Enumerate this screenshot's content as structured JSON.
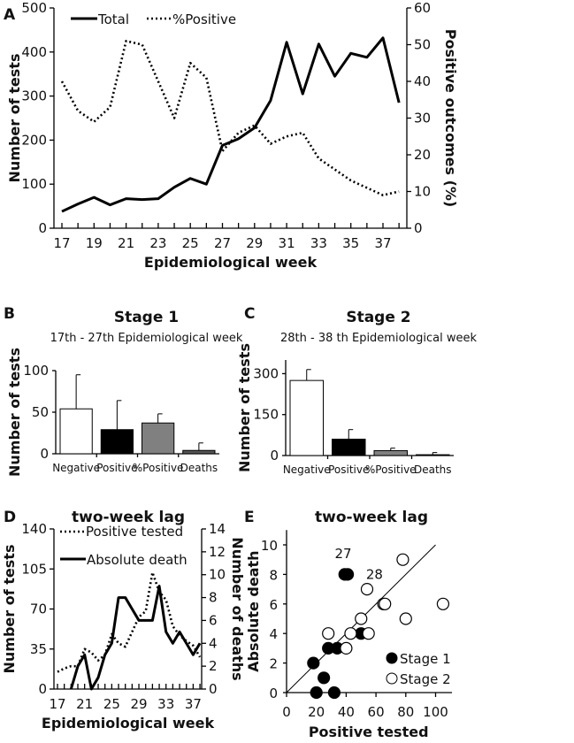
{
  "chart_data": [
    {
      "panel": "A",
      "type": "line",
      "xlabel": "Epidemiological week",
      "ylabel": "Number of tests",
      "y2label": "Positive outcomes (%)",
      "ylim": [
        0,
        500
      ],
      "y2lim": [
        0,
        60
      ],
      "yticks": [
        0,
        100,
        200,
        300,
        400,
        500
      ],
      "y2ticks": [
        0,
        10,
        20,
        30,
        40,
        50,
        60
      ],
      "xticks": [
        17,
        19,
        21,
        23,
        25,
        27,
        29,
        31,
        33,
        35,
        37
      ],
      "x": [
        17,
        18,
        19,
        20,
        21,
        22,
        23,
        24,
        25,
        26,
        27,
        28,
        29,
        30,
        31,
        32,
        33,
        34,
        35,
        36,
        37,
        38
      ],
      "series": [
        {
          "name": "Total",
          "axis": "left",
          "style": "solid",
          "values": [
            38,
            55,
            70,
            53,
            67,
            65,
            67,
            93,
            113,
            100,
            188,
            203,
            228,
            290,
            422,
            305,
            418,
            345,
            397,
            388,
            432,
            285
          ]
        },
        {
          "name": "%Positive",
          "axis": "right",
          "style": "dotted",
          "values": [
            40,
            32,
            29,
            33,
            51,
            50,
            40,
            30,
            45,
            41,
            21,
            26,
            28,
            23,
            25,
            26,
            19,
            16,
            13,
            11,
            9,
            10
          ]
        }
      ]
    },
    {
      "panel": "B",
      "type": "bar",
      "title": "Stage 1",
      "subtitle": "17th - 27th Epidemiological week",
      "ylabel": "Number of tests",
      "ylim": [
        0,
        100
      ],
      "yticks": [
        0,
        50,
        100
      ],
      "categories": [
        "Negative",
        "Positive",
        "%Positive",
        "Deaths"
      ],
      "values": [
        54,
        29,
        37,
        4
      ],
      "errors": [
        41,
        35,
        11,
        9
      ],
      "colors": [
        "#ffffff",
        "#000000",
        "#808080",
        "#555555"
      ]
    },
    {
      "panel": "C",
      "type": "bar",
      "title": "Stage 2",
      "subtitle": "28th - 38 th Epidemiological week",
      "ylabel": "Number of tests",
      "ylim": [
        0,
        350
      ],
      "yticks": [
        0,
        150,
        300
      ],
      "categories": [
        "Negative",
        "Positive",
        "%Positive",
        "Deaths"
      ],
      "values": [
        275,
        60,
        18,
        3
      ],
      "errors": [
        40,
        35,
        9,
        8
      ],
      "colors": [
        "#ffffff",
        "#000000",
        "#808080",
        "#555555"
      ]
    },
    {
      "panel": "D",
      "type": "line",
      "title": "two-week lag",
      "xlabel": "Epidemiological week",
      "ylabel": "Number of tests",
      "y2label": "Number of deaths",
      "ylim": [
        0,
        140
      ],
      "y2lim": [
        0,
        14
      ],
      "yticks": [
        0,
        35,
        70,
        105,
        140
      ],
      "y2ticks": [
        0,
        2,
        4,
        6,
        8,
        10,
        12,
        14
      ],
      "xticks": [
        17,
        21,
        25,
        29,
        33,
        37
      ],
      "x": [
        17,
        18,
        19,
        20,
        21,
        22,
        23,
        24,
        25,
        26,
        27,
        28,
        29,
        30,
        31,
        32,
        33,
        34,
        35,
        36,
        37,
        38
      ],
      "series": [
        {
          "name": "Positive tested",
          "axis": "left",
          "style": "dotted",
          "values": [
            15,
            18,
            20,
            20,
            35,
            32,
            25,
            30,
            48,
            40,
            37,
            50,
            63,
            68,
            102,
            85,
            78,
            55,
            47,
            42,
            38,
            28
          ]
        },
        {
          "name": "Absolute death",
          "axis": "right",
          "style": "solid",
          "values": [
            null,
            null,
            0,
            2,
            3,
            0,
            1,
            3,
            4,
            8,
            8,
            7,
            6,
            6,
            6,
            9,
            5,
            4,
            5,
            4,
            3,
            4
          ]
        }
      ]
    },
    {
      "panel": "E",
      "type": "scatter",
      "title": "two-week lag",
      "xlabel": "Positive tested",
      "ylabel": "Absolute death",
      "xlim": [
        0,
        110
      ],
      "ylim": [
        0,
        11
      ],
      "xticks": [
        0,
        20,
        40,
        60,
        80,
        100
      ],
      "yticks": [
        0,
        2,
        4,
        6,
        8,
        10
      ],
      "annotations": [
        "27",
        "28"
      ],
      "trendline": {
        "slope": 0.1,
        "intercept": 0
      },
      "series": [
        {
          "name": "Stage 1",
          "marker": "filled",
          "points": [
            [
              20,
              0
            ],
            [
              32,
              0
            ],
            [
              25,
              1
            ],
            [
              18,
              2
            ],
            [
              28,
              3
            ],
            [
              34,
              3
            ],
            [
              39,
              8
            ],
            [
              41,
              8
            ],
            [
              50,
              4
            ]
          ]
        },
        {
          "name": "Stage 2",
          "marker": "open",
          "points": [
            [
              28,
              4
            ],
            [
              40,
              3
            ],
            [
              43,
              4
            ],
            [
              50,
              5
            ],
            [
              55,
              4
            ],
            [
              54,
              7
            ],
            [
              65,
              6
            ],
            [
              66,
              6
            ],
            [
              78,
              9
            ],
            [
              80,
              5
            ],
            [
              105,
              6
            ]
          ]
        }
      ]
    }
  ]
}
